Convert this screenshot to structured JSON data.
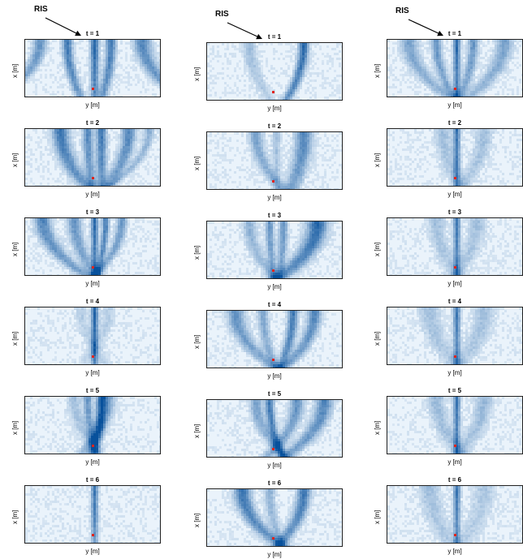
{
  "labels": {
    "ris": "RIS",
    "x_axis": "x [m]",
    "y_axis": "y [m]"
  },
  "colors": {
    "heat_low": "#eaf3fb",
    "heat_high": "#08519c",
    "marker": "#e0231b"
  },
  "columns": [
    {
      "panels": [
        {
          "t": "t = 1"
        },
        {
          "t": "t = 2"
        },
        {
          "t": "t = 3"
        },
        {
          "t": "t = 4"
        },
        {
          "t": "t = 5"
        },
        {
          "t": "t = 6"
        }
      ]
    },
    {
      "panels": [
        {
          "t": "t = 1"
        },
        {
          "t": "t = 2"
        },
        {
          "t": "t = 3"
        },
        {
          "t": "t = 4"
        },
        {
          "t": "t = 5"
        },
        {
          "t": "t = 6"
        }
      ]
    },
    {
      "panels": [
        {
          "t": "t = 1"
        },
        {
          "t": "t = 2"
        },
        {
          "t": "t = 3"
        },
        {
          "t": "t = 4"
        },
        {
          "t": "t = 5"
        },
        {
          "t": "t = 6"
        }
      ]
    }
  ]
}
